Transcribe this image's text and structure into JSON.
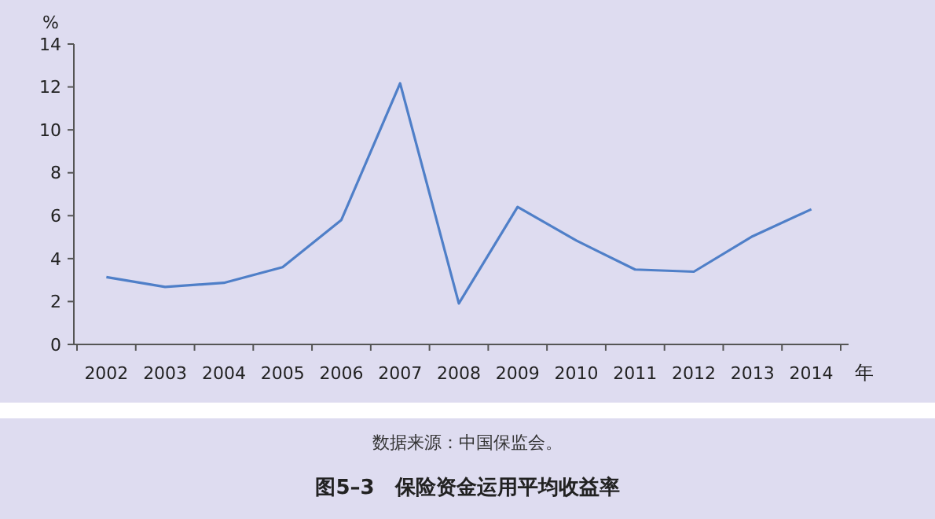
{
  "chart_data": {
    "type": "line",
    "title": "图5–3　保险资金运用平均收益率",
    "xlabel": "年",
    "ylabel": "%",
    "annotations": [
      "数据来源：中国保监会。"
    ],
    "categories": [
      "2002",
      "2003",
      "2004",
      "2005",
      "2006",
      "2007",
      "2008",
      "2009",
      "2010",
      "2011",
      "2012",
      "2013",
      "2014"
    ],
    "series": [
      {
        "color": "#4f7fc8",
        "values": [
          3.14,
          2.68,
          2.87,
          3.6,
          5.8,
          12.17,
          1.91,
          6.41,
          4.84,
          3.49,
          3.39,
          5.04,
          6.3
        ]
      }
    ],
    "ylim": [
      0,
      14
    ],
    "yticks": [
      0,
      2,
      4,
      6,
      8,
      10,
      12,
      14
    ],
    "marker": "none",
    "line_style": "solid"
  }
}
